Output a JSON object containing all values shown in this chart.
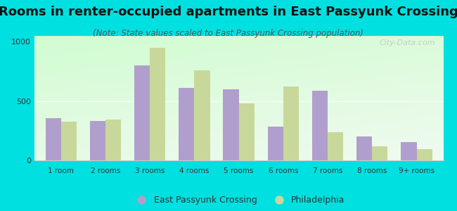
{
  "title": "Rooms in renter-occupied apartments in East Passyunk Crossing",
  "subtitle": "(Note: State values scaled to East Passyunk Crossing population)",
  "categories": [
    "1 room",
    "2 rooms",
    "3 rooms",
    "4 rooms",
    "5 rooms",
    "6 rooms",
    "7 rooms",
    "8 rooms",
    "9+ rooms"
  ],
  "epc_values": [
    355,
    330,
    800,
    610,
    600,
    285,
    590,
    200,
    155
  ],
  "philly_values": [
    325,
    345,
    950,
    760,
    480,
    620,
    240,
    120,
    95
  ],
  "epc_color": "#b09fcc",
  "philly_color": "#c8d89a",
  "bar_width": 0.35,
  "ylim": [
    0,
    1050
  ],
  "yticks": [
    0,
    500,
    1000
  ],
  "title_fontsize": 13,
  "subtitle_fontsize": 8.5,
  "legend_labels": [
    "East Passyunk Crossing",
    "Philadelphia"
  ],
  "watermark": "City-Data.com",
  "outer_bg": "#00e0e0",
  "plot_bg_color": "#eaf7ea"
}
